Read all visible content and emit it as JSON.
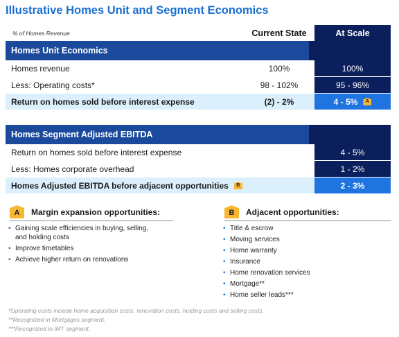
{
  "title": "Illustrative Homes Unit and Segment Economics",
  "header": {
    "note": "% of Homes Revenue",
    "current_col": "Current State",
    "scale_col": "At Scale"
  },
  "unit_economics": {
    "section_title": "Homes Unit Economics",
    "rows": [
      {
        "label": "Homes revenue",
        "current": "100%",
        "scale": "100%"
      },
      {
        "label": "Less: Operating costs*",
        "current": "98 - 102%",
        "scale": "95 - 96%"
      },
      {
        "label": "Return on homes sold before interest expense",
        "current": "(2) - 2%",
        "scale": "4 - 5%",
        "badge": "A"
      }
    ]
  },
  "segment_ebitda": {
    "section_title": "Homes Segment Adjusted EBITDA",
    "rows": [
      {
        "label": "Return on homes sold before interest expense",
        "scale": "4 - 5%"
      },
      {
        "label": "Less: Homes corporate overhead",
        "scale": "1 - 2%"
      },
      {
        "label": "Homes Adjusted EBITDA before adjacent opportunities",
        "badge": "B",
        "scale": "2 - 3%"
      }
    ]
  },
  "callout_a": {
    "badge": "A",
    "title": "Margin expansion opportunities:",
    "items": [
      "Gaining scale efficiencies in buying, selling,",
      "and holding costs",
      "Improve timetables",
      "Achieve higher return on renovations"
    ]
  },
  "callout_b": {
    "badge": "B",
    "title": "Adjacent opportunities:",
    "items": [
      "Title & escrow",
      "Moving services",
      "Home warranty",
      "Insurance",
      "Home renovation services",
      "Mortgage**",
      "Home seller leads***"
    ]
  },
  "footnotes": [
    "*Operating costs include home acquisition costs, renovation costs, holding costs and selling costs.",
    "**Recognized in Mortgages segment.",
    "***Recognized in IMT segment."
  ],
  "colors": {
    "title_blue": "#1a6fd0",
    "section_blue": "#1b4a9c",
    "navy": "#0b1f5c",
    "highlight_bg": "#dbeffc",
    "highlight_scale": "#1f74e0",
    "badge_yellow": "#f7b733"
  }
}
